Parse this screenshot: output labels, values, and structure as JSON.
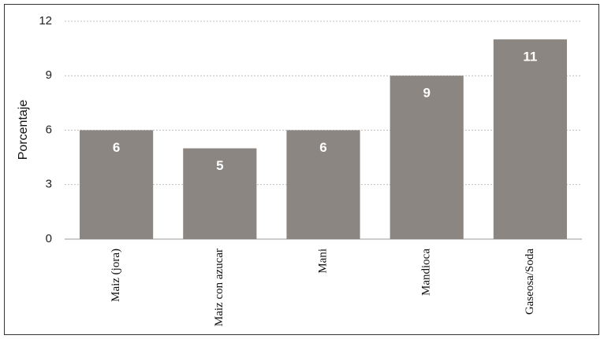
{
  "chart_data": {
    "type": "bar",
    "y_label": "Porcentaje",
    "categories": [
      "Maiz (jora)",
      "Maiz con azucar",
      "Mani",
      "Mandioca",
      "Gaseosa/Soda"
    ],
    "values": [
      6,
      5,
      6,
      9,
      11
    ],
    "color": "#8b8681",
    "ylim": [
      0,
      12
    ],
    "yticks": [
      0,
      3,
      6,
      9,
      12
    ],
    "grid": true
  }
}
